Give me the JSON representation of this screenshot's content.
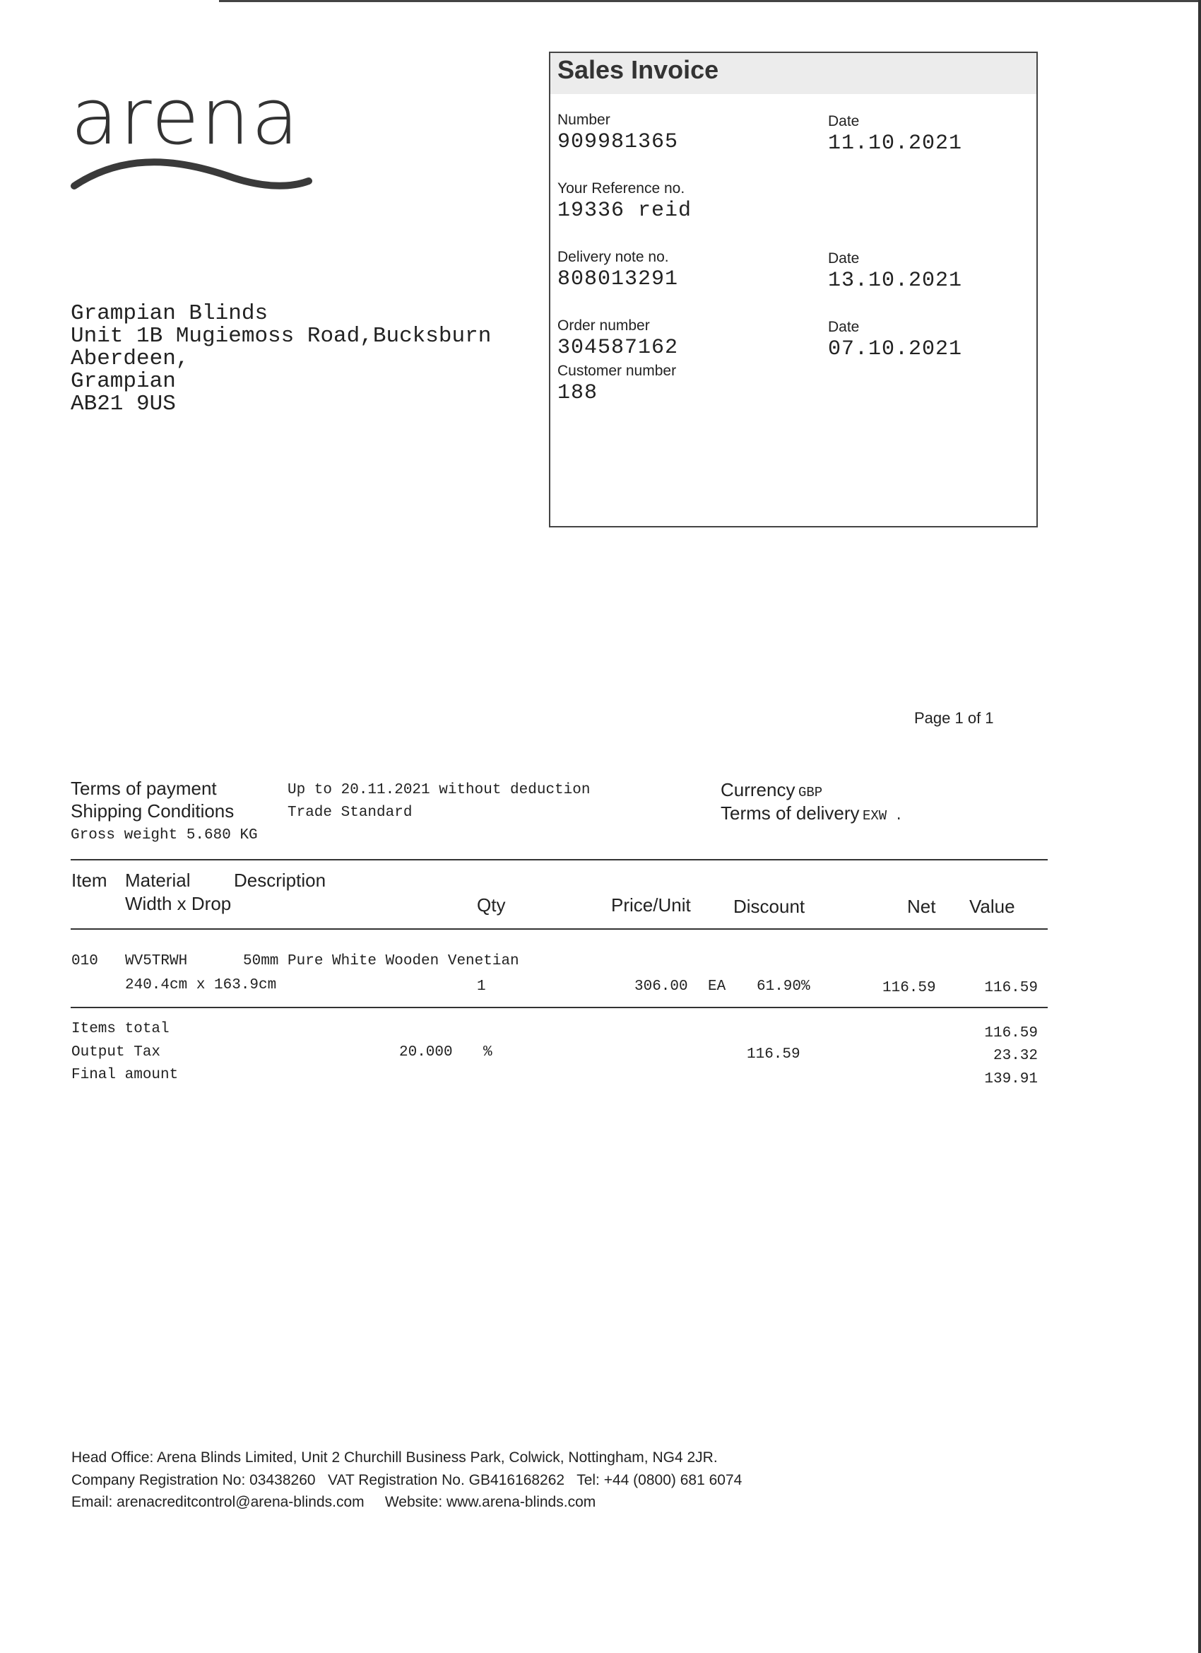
{
  "logo": {
    "text": "arena",
    "color": "#333333"
  },
  "invoice": {
    "title": "Sales Invoice",
    "number_label": "Number",
    "number": "909981365",
    "date_label": "Date",
    "date": "11.10.2021",
    "reference_label": "Your Reference no.",
    "reference": "19336 reid",
    "delivery_label": "Delivery note no.",
    "delivery": "808013291",
    "delivery_date_label": "Date",
    "delivery_date": "13.10.2021",
    "order_label": "Order number",
    "order": "304587162",
    "order_date_label": "Date",
    "order_date": "07.10.2021",
    "customer_label": "Customer number",
    "customer": "188"
  },
  "address": [
    "Grampian Blinds",
    "Unit 1B Mugiemoss Road,Bucksburn",
    "Aberdeen,",
    "Grampian",
    "AB21 9US"
  ],
  "page_info": "Page 1 of 1",
  "terms": {
    "payment_label": "Terms of payment",
    "payment": "Up to 20.11.2021 without deduction",
    "shipping_label": "Shipping Conditions",
    "shipping": "Trade Standard",
    "gross_weight": "Gross weight 5.680 KG",
    "currency_label": "Currency",
    "currency": "GBP",
    "delivery_label": "Terms of delivery",
    "delivery": "EXW ."
  },
  "table": {
    "headers": {
      "item": "Item",
      "material": "Material",
      "description": "Description",
      "width_drop": "Width x Drop",
      "qty": "Qty",
      "price": "Price/Unit",
      "discount": "Discount",
      "net": "Net",
      "value": "Value"
    },
    "rows": [
      {
        "item": "010",
        "material": "WV5TRWH",
        "description": "50mm Pure White Wooden Venetian",
        "width_drop": "240.4cm x 163.9cm",
        "qty": "1",
        "price": "306.00",
        "unit": "EA",
        "discount": "61.90%",
        "net": "116.59",
        "value": "116.59"
      }
    ]
  },
  "totals": {
    "items_label": "Items total",
    "items": "116.59",
    "tax_label": "Output Tax",
    "tax_rate": "20.000",
    "tax_pct": "%",
    "tax_base": "116.59",
    "tax": "23.32",
    "final_label": "Final amount",
    "final": "139.91"
  },
  "footer": [
    "Head Office: Arena Blinds Limited, Unit 2 Churchill Business Park, Colwick, Nottingham, NG4 2JR.",
    "Company Registration No: 03438260   VAT Registration No. GB416168262   Tel: +44 (0800) 681 6074",
    "Email: arenacreditcontrol@arena-blinds.com     Website: www.arena-blinds.com"
  ]
}
